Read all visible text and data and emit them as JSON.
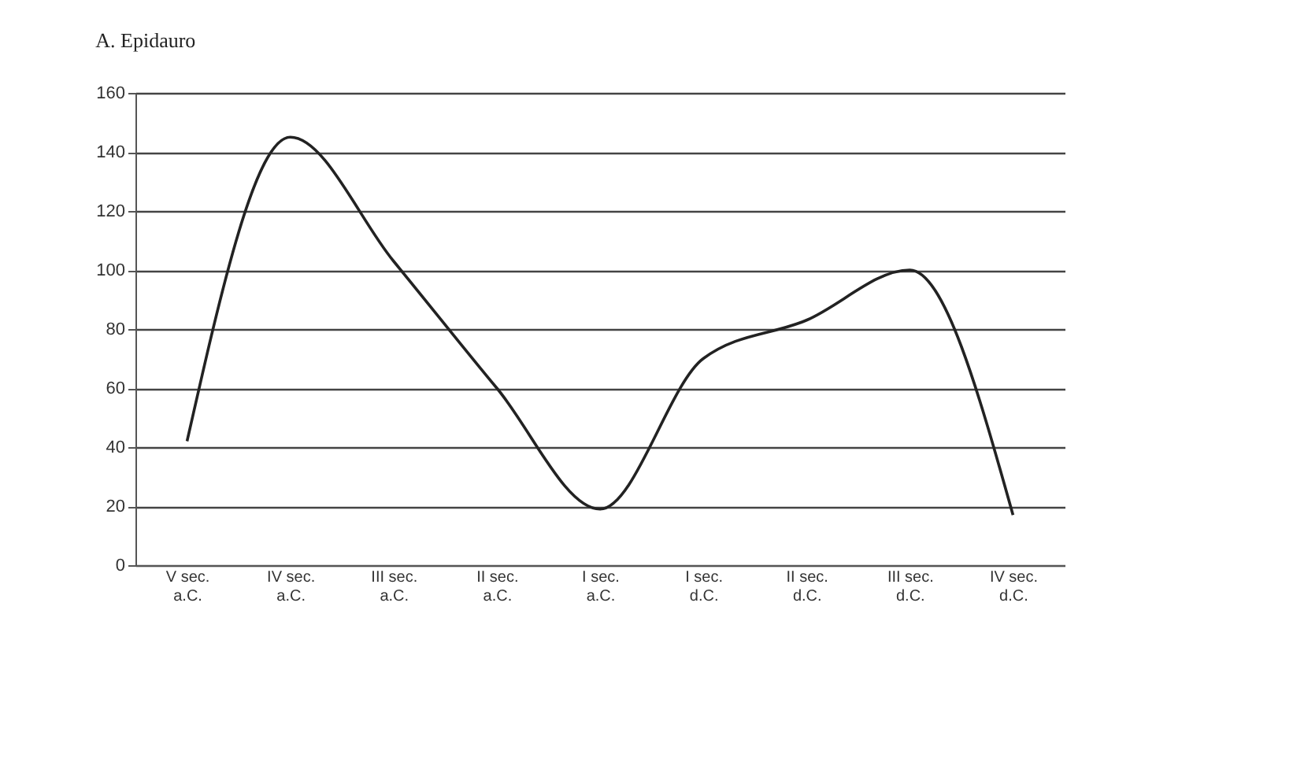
{
  "chart_data": {
    "type": "line",
    "title": "A. Epidauro",
    "categories": [
      "V sec. a.C.",
      "IV sec. a.C.",
      "III sec. a.C.",
      "II sec. a.C.",
      "I sec. a.C.",
      "I sec. d.C.",
      "II sec. d.C.",
      "III sec. d.C.",
      "IV sec. d.C."
    ],
    "series": [
      {
        "color": "#222222",
        "values": [
          42,
          145,
          103,
          60,
          19,
          70,
          83,
          100,
          17
        ]
      }
    ],
    "ylim": [
      0,
      160
    ],
    "yticks": [
      0,
      20,
      40,
      60,
      80,
      100,
      120,
      140,
      160
    ],
    "grid": "y",
    "marker": "none",
    "line_style": "solid",
    "legend": false
  }
}
